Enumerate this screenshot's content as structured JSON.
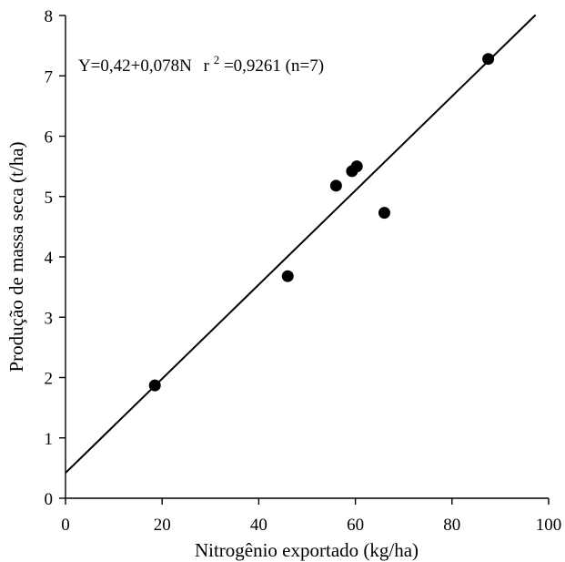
{
  "chart_data": {
    "type": "scatter",
    "title": "",
    "xlabel": "Nitrogênio exportado (kg/ha)",
    "ylabel": "Produção de massa seca (t/ha)",
    "xlim": [
      0,
      100
    ],
    "ylim": [
      0,
      8
    ],
    "x_ticks": [
      "0",
      "20",
      "40",
      "60",
      "80",
      "100"
    ],
    "y_ticks": [
      "0",
      "1",
      "2",
      "3",
      "4",
      "5",
      "6",
      "7",
      "8"
    ],
    "grid": false,
    "legend": "none",
    "point_color": "#000000",
    "series": [
      {
        "x": [
          18.5,
          46,
          56,
          59.3,
          60.3,
          66,
          87.5
        ],
        "y": [
          1.87,
          3.68,
          5.18,
          5.42,
          5.5,
          4.73,
          7.28
        ]
      }
    ],
    "regression": {
      "intercept": 0.42,
      "slope": 0.078,
      "x_range": [
        0,
        97.3
      ]
    },
    "annotation": {
      "equation": "Y=0,42+0,078N",
      "r_prefix": "r",
      "r_sup": "2",
      "r_value": "=0,9261 (n=7)"
    }
  }
}
